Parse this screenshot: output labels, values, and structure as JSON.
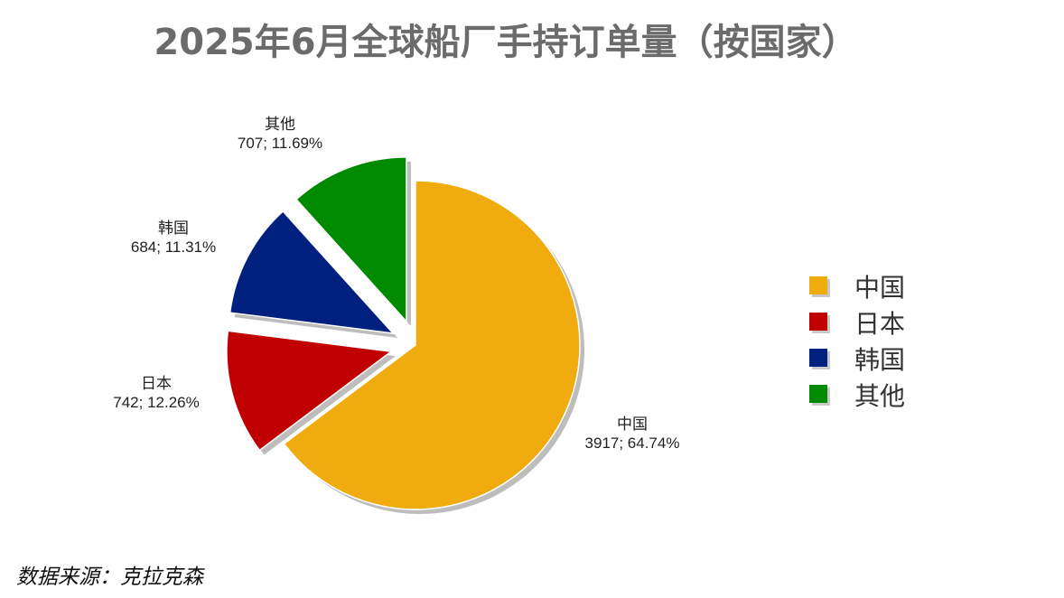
{
  "chart_data": {
    "type": "pie",
    "title": "2025年6月全球船厂手持订单量（按国家）",
    "categories": [
      "中国",
      "日本",
      "韩国",
      "其他"
    ],
    "values": [
      3917,
      742,
      684,
      707
    ],
    "percent_labels": [
      "64.74%",
      "12.26%",
      "11.31%",
      "11.69%"
    ],
    "data_labels": [
      "3917; 64.74%",
      "742; 12.26%",
      "684; 11.31%",
      "707; 11.69%"
    ],
    "colors": [
      "#F0AC0E",
      "#C00000",
      "#002080",
      "#008A00"
    ],
    "exploded": true,
    "legend_position": "right"
  },
  "source": "数据来源：克拉克森"
}
